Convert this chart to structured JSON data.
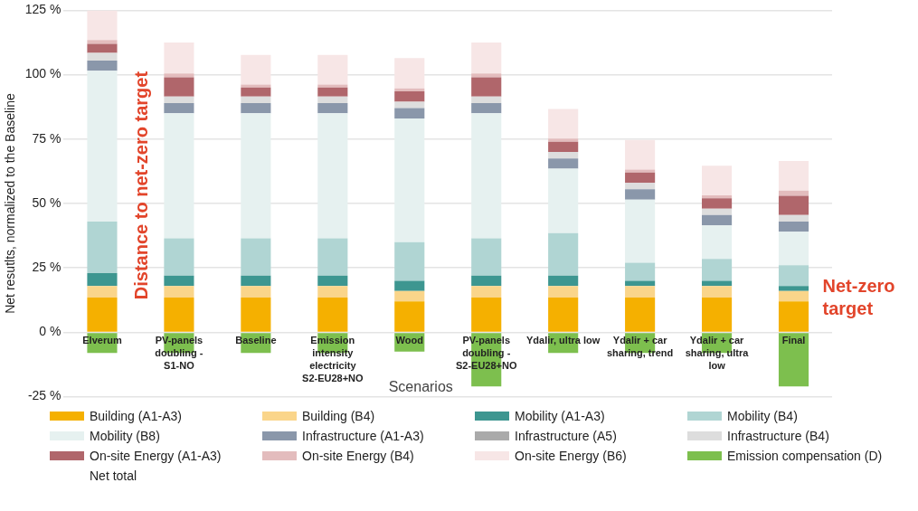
{
  "chart_data": {
    "type": "bar",
    "stacked": true,
    "ylabel": "Net resutlts, normalized to the Baseline",
    "xlabel": "Scenarios",
    "categories": [
      "Elverum",
      "PV-panels doubling - S1-NO",
      "Baseline",
      "Emission intensity electricity S2-EU28+NO",
      "Wood",
      "PV-panels doubling - S2-EU28+NO",
      "Ydalir, ultra low",
      "Ydalir + car sharing, trend",
      "Ydalir + car sharing, ultra low",
      "Final"
    ],
    "ylim": [
      -25,
      125
    ],
    "yticks": [
      {
        "value": -25,
        "label": "-25 %"
      },
      {
        "value": 0,
        "label": "0 %"
      },
      {
        "value": 25,
        "label": "25 %"
      },
      {
        "value": 50,
        "label": "50 %"
      },
      {
        "value": 75,
        "label": "75 %"
      },
      {
        "value": 100,
        "label": "100 %"
      },
      {
        "value": 125,
        "label": "125 %"
      }
    ],
    "grid": "y",
    "legend": "bottom",
    "series": [
      {
        "name": "Building (A1-A3)",
        "color": "#f5b000",
        "values": [
          13.5,
          13.5,
          13.5,
          13.5,
          12,
          13.5,
          13.5,
          13.5,
          13.5,
          12
        ]
      },
      {
        "name": "Building (B4)",
        "color": "#fad58a",
        "values": [
          4.5,
          4.5,
          4.5,
          4.5,
          4,
          4.5,
          4.5,
          4.5,
          4.5,
          4
        ]
      },
      {
        "name": "Mobility (A1-A3)",
        "color": "#3d9690",
        "values": [
          5,
          4,
          4,
          4,
          4,
          4,
          4,
          2,
          2,
          2
        ]
      },
      {
        "name": "Mobility (B4)",
        "color": "#b0d5d3",
        "values": [
          20,
          14.5,
          14.5,
          14.5,
          15,
          14.5,
          16.5,
          7,
          8.5,
          8
        ]
      },
      {
        "name": "Mobility (B8)",
        "color": "#e6f1f0",
        "values": [
          58.5,
          48.5,
          48.5,
          48.5,
          48,
          48.5,
          25,
          24.5,
          13,
          13
        ]
      },
      {
        "name": "Infrastructure (A1-A3)",
        "color": "#8a97aa",
        "values": [
          4,
          4,
          4,
          4,
          4,
          4,
          4,
          4,
          4,
          4
        ]
      },
      {
        "name": "Infrastructure (A5)",
        "color": "#aaaaaa",
        "values": [
          0,
          0,
          0,
          0,
          0,
          0,
          0,
          0,
          0,
          0
        ]
      },
      {
        "name": "Infrastructure (B4)",
        "color": "#dddddd",
        "values": [
          3,
          2.5,
          2.5,
          2.5,
          2.5,
          2.5,
          2.5,
          2.5,
          2.5,
          2.5
        ]
      },
      {
        "name": "On-site Energy (A1-A3)",
        "color": "#b0666b",
        "values": [
          3.5,
          7.5,
          3.5,
          3.5,
          4,
          7.5,
          4,
          4,
          4,
          7.5
        ]
      },
      {
        "name": "On-site Energy (B4)",
        "color": "#e3bcbd",
        "values": [
          1.5,
          1.5,
          1.2,
          1.2,
          1.2,
          1.5,
          1.2,
          1.2,
          1.2,
          2
        ]
      },
      {
        "name": "On-site Energy (B6)",
        "color": "#f7e6e6",
        "values": [
          11.5,
          12,
          11.5,
          11.5,
          11.7,
          12,
          11.5,
          11.5,
          11.5,
          11.5
        ]
      },
      {
        "name": "Emission compensation (D)",
        "color": "#7dbf4e",
        "values": [
          -8,
          -8,
          -8,
          -8,
          -7.5,
          -21,
          -8,
          -8,
          -8,
          -21
        ]
      },
      {
        "name": "Net total",
        "values": [
          null,
          null,
          null,
          null,
          null,
          null,
          null,
          null,
          null,
          null
        ]
      }
    ],
    "annotations": [
      "Distance to net-zero target",
      "Net-zero target"
    ]
  }
}
